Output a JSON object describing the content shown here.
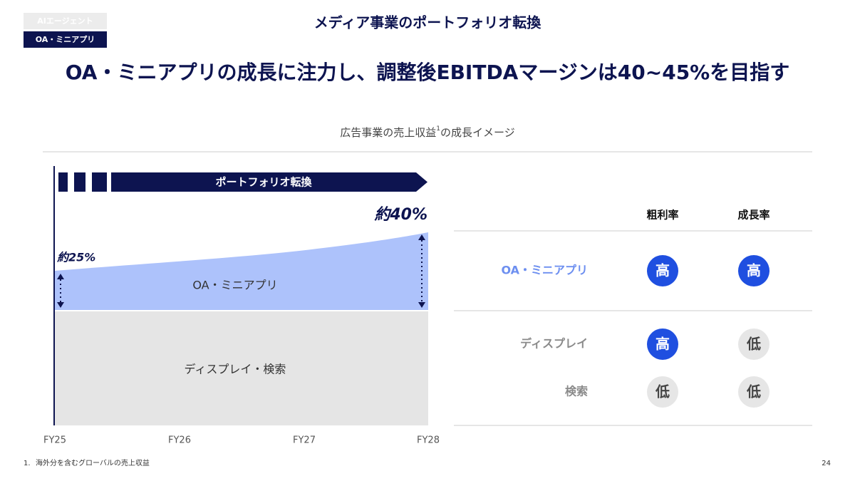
{
  "tags": [
    {
      "text": "AIエージェント",
      "active": false
    },
    {
      "text": "OA・ミニアプリ",
      "active": true
    }
  ],
  "header": {
    "title": "メディア事業のポートフォリオ転換",
    "headline": "OA・ミニアプリの成長に注力し、調整後EBITDAマージンは40~45%を目指す"
  },
  "figure": {
    "title": "広告事業の売上収益",
    "title_sup": "1",
    "title_suffix": "の成長イメージ",
    "banner": "ポートフォリオ転換",
    "start_label": "約25%",
    "end_label": "約40%",
    "areas": [
      "OA・ミニアプリ",
      "ディスプレイ・検索"
    ],
    "x_labels": [
      "FY25",
      "FY26",
      "FY27",
      "FY28"
    ]
  },
  "table": {
    "columns": [
      "粗利率",
      "成長率"
    ],
    "rows": [
      {
        "name": "OA・ミニアプリ",
        "color": "#6d8ff0",
        "cells": [
          {
            "text": "高",
            "highlight": true
          },
          {
            "text": "高",
            "highlight": true
          }
        ]
      },
      {
        "name": "ディスプレイ",
        "color": "#8a8a8a",
        "cells": [
          {
            "text": "高",
            "highlight": true
          },
          {
            "text": "低",
            "highlight": false
          }
        ]
      },
      {
        "name": "検索",
        "color": "#8a8a8a",
        "cells": [
          {
            "text": "低",
            "highlight": false
          },
          {
            "text": "低",
            "highlight": false
          }
        ]
      }
    ]
  },
  "footnote": {
    "number": "1.",
    "text": "海外分を含むグローバルの売上収益"
  },
  "page_number": "24"
}
